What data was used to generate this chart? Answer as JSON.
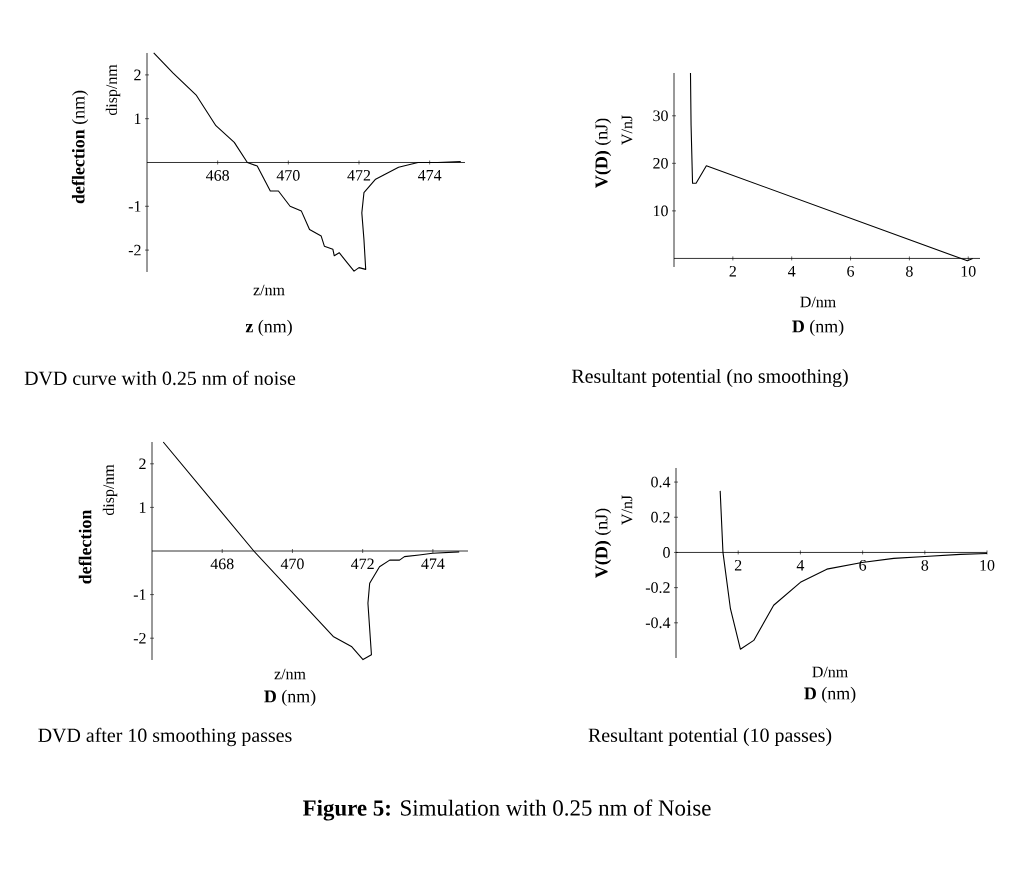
{
  "chart_data": [
    {
      "type": "line",
      "title": "DVD curve with 0.25 nm of noise",
      "xlabel": "z/nm",
      "ylabel": "disp/nm",
      "annotations": [
        "**deflection** (nm)",
        "**z** (nm)"
      ],
      "xlim": [
        466,
        475
      ],
      "ylim": [
        -2.5,
        2.5
      ],
      "xticks": [
        468,
        470,
        472,
        474
      ],
      "yticks": [
        -2,
        -1,
        1,
        2
      ],
      "color": "#000000",
      "x": [
        466.19,
        466.74,
        467.4,
        467.95,
        468.47,
        468.84,
        469.12,
        469.49,
        469.72,
        470.05,
        470.37,
        470.6,
        470.93,
        471.02,
        471.26,
        471.3,
        471.44,
        471.67,
        471.86,
        472.0,
        472.19,
        472.14,
        472.08,
        472.14,
        472.47,
        472.74,
        473.12,
        473.67,
        474.23,
        474.88
      ],
      "values": [
        2.5,
        2.04,
        1.53,
        0.84,
        0.46,
        0,
        -0.08,
        -0.65,
        -0.65,
        -1.0,
        -1.11,
        -1.53,
        -1.68,
        -1.91,
        -1.98,
        -2.13,
        -2.06,
        -2.29,
        -2.48,
        -2.4,
        -2.44,
        -1.76,
        -1.15,
        -0.69,
        -0.38,
        -0.27,
        -0.11,
        0,
        0,
        0.02
      ]
    },
    {
      "type": "line",
      "title": "Resultant potential (no smoothing)",
      "xlabel": "D/nm",
      "ylabel": "V/nJ",
      "annotations": [
        "**V(D)** (nJ)",
        "**D** (nm)"
      ],
      "xlim": [
        0,
        10.4
      ],
      "ylim": [
        -1.8,
        39
      ],
      "xticks": [
        2,
        4,
        6,
        8,
        10
      ],
      "yticks": [
        10,
        20,
        30
      ],
      "color": "#000000",
      "x": [
        0.56,
        0.58,
        0.63,
        0.75,
        1.1,
        9.97,
        10.15
      ],
      "values": [
        39,
        28,
        15.8,
        15.8,
        19.5,
        -0.5,
        0
      ]
    },
    {
      "type": "line",
      "title": "DVD after 10 smoothing passes",
      "xlabel": "z/nm",
      "ylabel": "disp/nm",
      "annotations": [
        "**deflection**",
        "**D** (nm)"
      ],
      "xlim": [
        466,
        475
      ],
      "ylim": [
        -2.5,
        2.5
      ],
      "xticks": [
        468,
        470,
        472,
        474
      ],
      "yticks": [
        -2,
        -1,
        1,
        2
      ],
      "color": "#000000",
      "x": [
        466.32,
        468.9,
        471.16,
        471.68,
        472.01,
        472.25,
        472.15,
        472.2,
        472.48,
        472.77,
        473.05,
        473.19,
        473.61,
        473.99,
        474.75
      ],
      "values": [
        2.5,
        0,
        -1.96,
        -2.19,
        -2.49,
        -2.38,
        -1.2,
        -0.74,
        -0.36,
        -0.21,
        -0.21,
        -0.13,
        -0.09,
        -0.05,
        -0.02
      ]
    },
    {
      "type": "line",
      "title": "Resultant potential (10 passes)",
      "xlabel": "D/nm",
      "ylabel": "V/nJ",
      "annotations": [
        "**V(D)** (nJ)",
        "**D** (nm)"
      ],
      "xlim": [
        0,
        10
      ],
      "ylim": [
        -0.6,
        0.48
      ],
      "xticks": [
        2,
        4,
        6,
        8,
        10
      ],
      "yticks": [
        -0.4,
        -0.2,
        0,
        0.2,
        0.4
      ],
      "color": "#000000",
      "x": [
        1.42,
        1.51,
        1.75,
        2.07,
        2.5,
        3.14,
        4.0,
        4.85,
        5.98,
        7.0,
        8.0,
        9.14,
        10
      ],
      "values": [
        0.35,
        0,
        -0.32,
        -0.55,
        -0.5,
        -0.3,
        -0.17,
        -0.095,
        -0.057,
        -0.034,
        -0.023,
        -0.011,
        -0.006
      ]
    },
    {
      "type": "other",
      "title": "**Figure 5:** Simulation with 0.25 nm of Noise"
    }
  ]
}
